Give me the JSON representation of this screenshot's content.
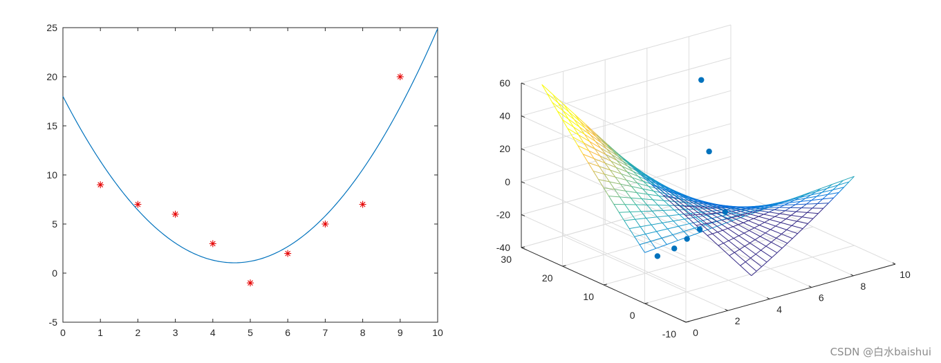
{
  "chart_data": [
    {
      "type": "scatter",
      "title": "",
      "xlabel": "",
      "ylabel": "",
      "xlim": [
        0,
        10
      ],
      "ylim": [
        -5,
        25
      ],
      "x_ticks": [
        "0",
        "1",
        "2",
        "3",
        "4",
        "5",
        "6",
        "7",
        "8",
        "9",
        "10"
      ],
      "y_ticks": [
        "-5",
        "0",
        "5",
        "10",
        "15",
        "20",
        "25"
      ],
      "points": {
        "x": [
          1,
          2,
          3,
          4,
          5,
          6,
          7,
          8,
          9
        ],
        "y": [
          9,
          7,
          6,
          3,
          -1,
          2,
          5,
          7,
          20
        ],
        "marker": "asterisk",
        "color": "#e50000"
      },
      "fit_curve": {
        "kind": "quadratic",
        "coefficients": [
          0.81,
          -7.41,
          18.0
        ],
        "x_range": [
          0,
          10
        ],
        "color": "#0072bd"
      },
      "box": true,
      "grid": false
    },
    {
      "type": "surface",
      "title": "",
      "xlim": [
        0,
        10
      ],
      "ylim": [
        -10,
        30
      ],
      "zlim": [
        -40,
        60
      ],
      "x_ticks": [
        "0",
        "2",
        "4",
        "6",
        "8",
        "10"
      ],
      "y_ticks": [
        "-10",
        "0",
        "10",
        "20",
        "30"
      ],
      "z_ticks": [
        "-40",
        "-20",
        "0",
        "20",
        "40",
        "60"
      ],
      "surface_grid": {
        "x_range": [
          0,
          10
        ],
        "y_range": [
          0,
          25
        ],
        "nx": 20,
        "ny": 21
      },
      "colormap": "parula",
      "points": {
        "color": "#0072bd",
        "xyz": [
          [
            1,
            2,
            -17
          ],
          [
            2,
            3,
            -17
          ],
          [
            3,
            5,
            -17
          ],
          [
            4,
            7,
            -17
          ],
          [
            6,
            11,
            -18
          ],
          [
            7,
            20,
            5
          ],
          [
            8,
            27,
            37
          ]
        ]
      },
      "grid": true
    }
  ],
  "watermark": "CSDN @白水baishui"
}
